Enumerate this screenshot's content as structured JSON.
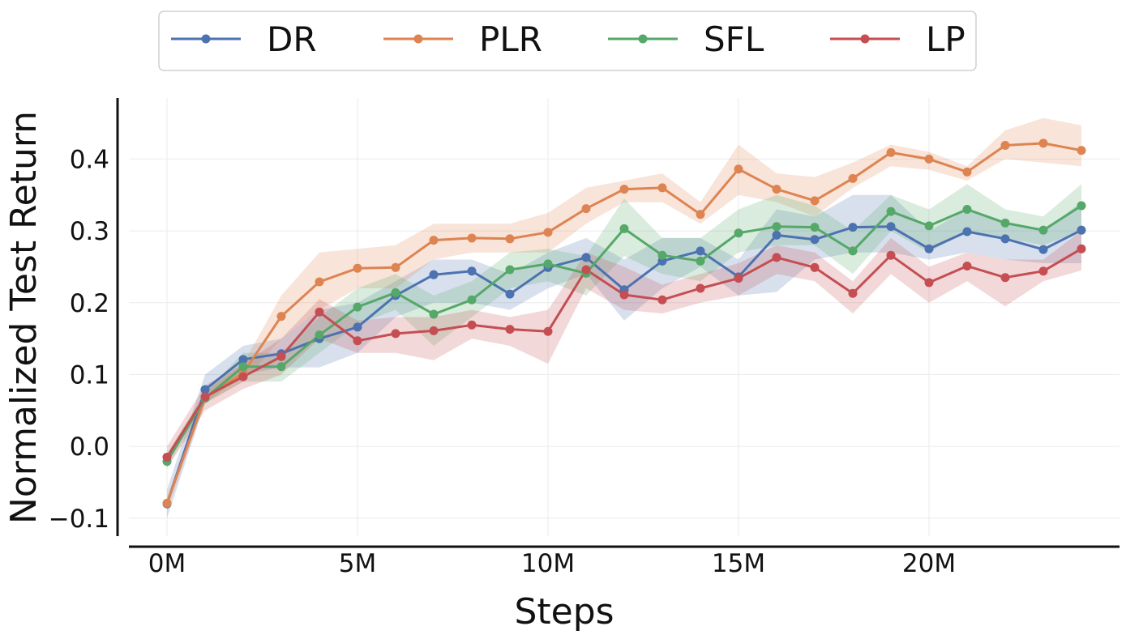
{
  "chart_data": {
    "type": "line",
    "title": "",
    "xlabel": "Steps",
    "ylabel": "Normalized Test Return",
    "xlim": [
      -1,
      25
    ],
    "ylim": [
      -0.125,
      0.485
    ],
    "x_ticks": [
      0,
      5,
      10,
      15,
      20
    ],
    "x_tick_labels": [
      "0M",
      "5M",
      "10M",
      "15M",
      "20M"
    ],
    "y_ticks": [
      -0.1,
      0.0,
      0.1,
      0.2,
      0.3,
      0.4
    ],
    "y_tick_labels": [
      "−0.1",
      "0.0",
      "0.1",
      "0.2",
      "0.3",
      "0.4"
    ],
    "grid": true,
    "legend_position": "top-center",
    "series": [
      {
        "name": "DR",
        "color": "#4c72b0",
        "x": [
          0,
          1,
          2,
          3,
          4,
          5,
          6,
          7,
          8,
          9,
          10,
          11,
          12,
          13,
          14,
          15,
          16,
          17,
          18,
          19,
          20,
          21,
          22,
          23,
          24
        ],
        "y": [
          -0.08,
          0.079,
          0.121,
          0.129,
          0.15,
          0.166,
          0.21,
          0.239,
          0.244,
          0.212,
          0.249,
          0.263,
          0.218,
          0.258,
          0.272,
          0.236,
          0.294,
          0.288,
          0.305,
          0.306,
          0.275,
          0.299,
          0.289,
          0.274,
          0.301
        ],
        "lower": [
          -0.1,
          0.06,
          0.1,
          0.11,
          0.11,
          0.13,
          0.18,
          0.2,
          0.2,
          0.19,
          0.22,
          0.24,
          0.175,
          0.22,
          0.25,
          0.21,
          0.215,
          0.26,
          0.27,
          0.27,
          0.26,
          0.27,
          0.26,
          0.255,
          0.255
        ],
        "upper": [
          -0.06,
          0.1,
          0.14,
          0.15,
          0.19,
          0.2,
          0.23,
          0.26,
          0.26,
          0.24,
          0.27,
          0.29,
          0.26,
          0.29,
          0.29,
          0.26,
          0.33,
          0.32,
          0.35,
          0.35,
          0.3,
          0.33,
          0.31,
          0.3,
          0.34
        ]
      },
      {
        "name": "PLR",
        "color": "#dd8452",
        "x": [
          0,
          1,
          2,
          3,
          4,
          5,
          6,
          7,
          8,
          9,
          10,
          11,
          12,
          13,
          14,
          15,
          16,
          17,
          18,
          19,
          20,
          21,
          22,
          23,
          24
        ],
        "y": [
          -0.079,
          0.068,
          0.102,
          0.181,
          0.229,
          0.248,
          0.249,
          0.287,
          0.29,
          0.289,
          0.298,
          0.331,
          0.358,
          0.36,
          0.323,
          0.386,
          0.358,
          0.342,
          0.373,
          0.409,
          0.4,
          0.382,
          0.419,
          0.422,
          0.412
        ],
        "lower": [
          -0.09,
          0.06,
          0.09,
          0.15,
          0.19,
          0.22,
          0.22,
          0.26,
          0.27,
          0.27,
          0.27,
          0.31,
          0.34,
          0.34,
          0.31,
          0.35,
          0.34,
          0.32,
          0.36,
          0.39,
          0.385,
          0.37,
          0.4,
          0.395,
          0.39
        ],
        "upper": [
          -0.07,
          0.075,
          0.115,
          0.21,
          0.27,
          0.275,
          0.28,
          0.31,
          0.31,
          0.31,
          0.325,
          0.36,
          0.37,
          0.38,
          0.34,
          0.42,
          0.38,
          0.375,
          0.395,
          0.42,
          0.41,
          0.39,
          0.44,
          0.457,
          0.447
        ]
      },
      {
        "name": "SFL",
        "color": "#55a868",
        "x": [
          0,
          1,
          2,
          3,
          4,
          5,
          6,
          7,
          8,
          9,
          10,
          11,
          12,
          13,
          14,
          15,
          16,
          17,
          18,
          19,
          20,
          21,
          22,
          23,
          24
        ],
        "y": [
          -0.021,
          0.067,
          0.111,
          0.111,
          0.155,
          0.194,
          0.214,
          0.184,
          0.204,
          0.246,
          0.254,
          0.241,
          0.303,
          0.266,
          0.258,
          0.297,
          0.306,
          0.305,
          0.272,
          0.327,
          0.307,
          0.33,
          0.311,
          0.301,
          0.335
        ],
        "lower": [
          -0.03,
          0.06,
          0.09,
          0.09,
          0.13,
          0.17,
          0.19,
          0.14,
          0.18,
          0.22,
          0.23,
          0.21,
          0.265,
          0.24,
          0.23,
          0.27,
          0.28,
          0.28,
          0.24,
          0.3,
          0.27,
          0.3,
          0.29,
          0.28,
          0.3
        ],
        "upper": [
          -0.01,
          0.075,
          0.13,
          0.13,
          0.18,
          0.22,
          0.24,
          0.21,
          0.23,
          0.27,
          0.275,
          0.265,
          0.345,
          0.29,
          0.29,
          0.33,
          0.35,
          0.335,
          0.3,
          0.35,
          0.33,
          0.365,
          0.33,
          0.32,
          0.365
        ]
      },
      {
        "name": "LP",
        "color": "#c44e52",
        "x": [
          0,
          1,
          2,
          3,
          4,
          5,
          6,
          7,
          8,
          9,
          10,
          11,
          12,
          13,
          14,
          15,
          16,
          17,
          18,
          19,
          20,
          21,
          22,
          23,
          24
        ],
        "y": [
          -0.015,
          0.069,
          0.097,
          0.125,
          0.187,
          0.147,
          0.157,
          0.161,
          0.169,
          0.163,
          0.16,
          0.246,
          0.211,
          0.204,
          0.22,
          0.234,
          0.263,
          0.249,
          0.213,
          0.266,
          0.228,
          0.251,
          0.235,
          0.244,
          0.275
        ],
        "lower": [
          -0.03,
          0.05,
          0.08,
          0.1,
          0.15,
          0.13,
          0.13,
          0.12,
          0.15,
          0.14,
          0.115,
          0.22,
          0.19,
          0.185,
          0.2,
          0.21,
          0.24,
          0.23,
          0.185,
          0.24,
          0.2,
          0.23,
          0.195,
          0.23,
          0.245
        ],
        "upper": [
          0.0,
          0.085,
          0.115,
          0.15,
          0.205,
          0.175,
          0.18,
          0.18,
          0.19,
          0.18,
          0.19,
          0.27,
          0.25,
          0.225,
          0.24,
          0.255,
          0.28,
          0.27,
          0.23,
          0.29,
          0.25,
          0.27,
          0.26,
          0.26,
          0.3
        ]
      }
    ]
  }
}
